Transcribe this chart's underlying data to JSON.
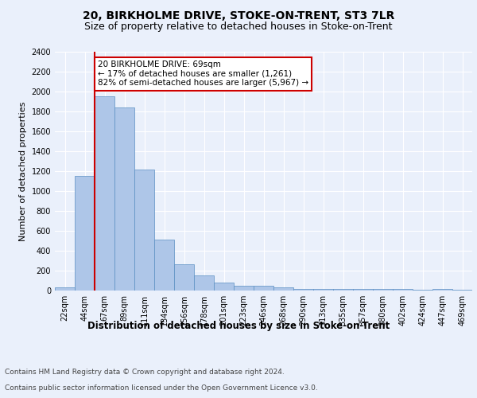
{
  "title": "20, BIRKHOLME DRIVE, STOKE-ON-TRENT, ST3 7LR",
  "subtitle": "Size of property relative to detached houses in Stoke-on-Trent",
  "xlabel": "Distribution of detached houses by size in Stoke-on-Trent",
  "ylabel": "Number of detached properties",
  "categories": [
    "22sqm",
    "44sqm",
    "67sqm",
    "89sqm",
    "111sqm",
    "134sqm",
    "156sqm",
    "178sqm",
    "201sqm",
    "223sqm",
    "246sqm",
    "268sqm",
    "290sqm",
    "313sqm",
    "335sqm",
    "357sqm",
    "380sqm",
    "402sqm",
    "424sqm",
    "447sqm",
    "469sqm"
  ],
  "values": [
    30,
    1155,
    1950,
    1840,
    1215,
    515,
    265,
    155,
    80,
    45,
    45,
    30,
    18,
    18,
    18,
    18,
    18,
    18,
    5,
    18,
    5
  ],
  "bar_color": "#aec6e8",
  "bar_edge_color": "#5a8fc2",
  "annotation_text": "20 BIRKHOLME DRIVE: 69sqm\n← 17% of detached houses are smaller (1,261)\n82% of semi-detached houses are larger (5,967) →",
  "annotation_box_color": "#ffffff",
  "annotation_box_edge_color": "#cc0000",
  "red_line_color": "#cc0000",
  "ylim": [
    0,
    2400
  ],
  "yticks": [
    0,
    200,
    400,
    600,
    800,
    1000,
    1200,
    1400,
    1600,
    1800,
    2000,
    2200,
    2400
  ],
  "footer_line1": "Contains HM Land Registry data © Crown copyright and database right 2024.",
  "footer_line2": "Contains public sector information licensed under the Open Government Licence v3.0.",
  "bg_color": "#eaf0fb",
  "plot_bg_color": "#eaf0fb",
  "title_fontsize": 10,
  "subtitle_fontsize": 9,
  "ylabel_fontsize": 8,
  "xlabel_fontsize": 8.5,
  "tick_fontsize": 7,
  "annotation_fontsize": 7.5,
  "footer_fontsize": 6.5
}
